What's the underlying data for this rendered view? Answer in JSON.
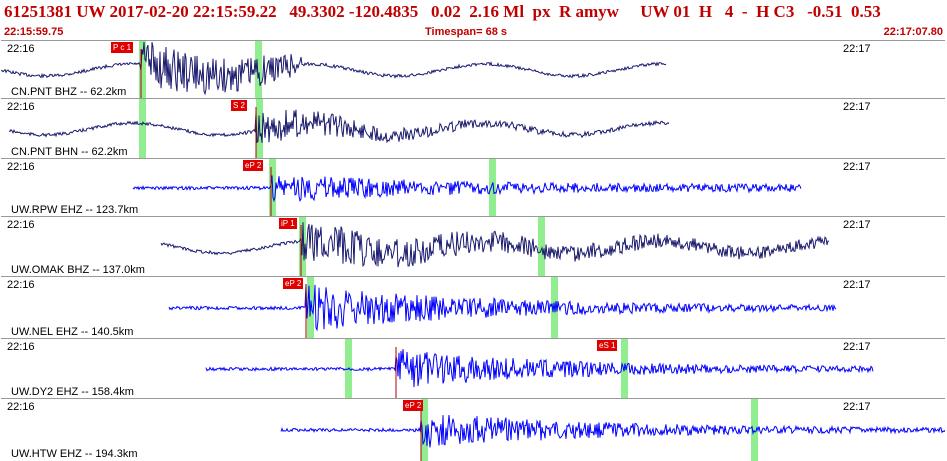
{
  "header": {
    "title": "61251381 UW 2017-02-20 22:15:59.22   49.3302 -120.4835   0.02  2.16 Ml  px  R amyw     UW 01  H   4  -  H C3   -0.51  0.53",
    "start_time": "22:15:59.75",
    "timespan": "Timespan=  68 s",
    "end_time": "22:17:07.80"
  },
  "colors": {
    "accent_red": "#c00000",
    "trace_dark": "#1a1a6e",
    "trace_blue": "#0000ff",
    "green_marker": "#90ee90",
    "pick_red": "#e00000"
  },
  "panels": [
    {
      "station": "CN.PNT BHZ -- 62.2km",
      "time_left": "22:16",
      "time_right": "22:17",
      "picks": [
        "P c 1"
      ],
      "color": "dark"
    },
    {
      "station": "CN.PNT BHN -- 62.2km",
      "time_left": "22:16",
      "time_right": "22:17",
      "picks": [
        "S 2"
      ],
      "color": "dark"
    },
    {
      "station": "UW.RPW EHZ -- 123.7km",
      "time_left": "22:16",
      "time_right": "22:17",
      "picks": [
        "eP 2"
      ],
      "color": "blue"
    },
    {
      "station": "UW.OMAK BHZ -- 137.0km",
      "time_left": "22:16",
      "time_right": "22:17",
      "picks": [
        "iP 1"
      ],
      "color": "dark"
    },
    {
      "station": "UW.NEL EHZ -- 140.5km",
      "time_left": "22:16",
      "time_right": "22:17",
      "picks": [
        "eP 2"
      ],
      "color": "blue"
    },
    {
      "station": "UW.DY2 EHZ -- 158.4km",
      "time_left": "22:16",
      "time_right": "22:17",
      "picks": [
        "eS 1"
      ],
      "color": "blue"
    },
    {
      "station": "UW.HTW EHZ -- 194.3km",
      "time_left": "22:16",
      "time_right": "22:17",
      "picks": [
        "eP 2"
      ],
      "color": "blue"
    }
  ]
}
